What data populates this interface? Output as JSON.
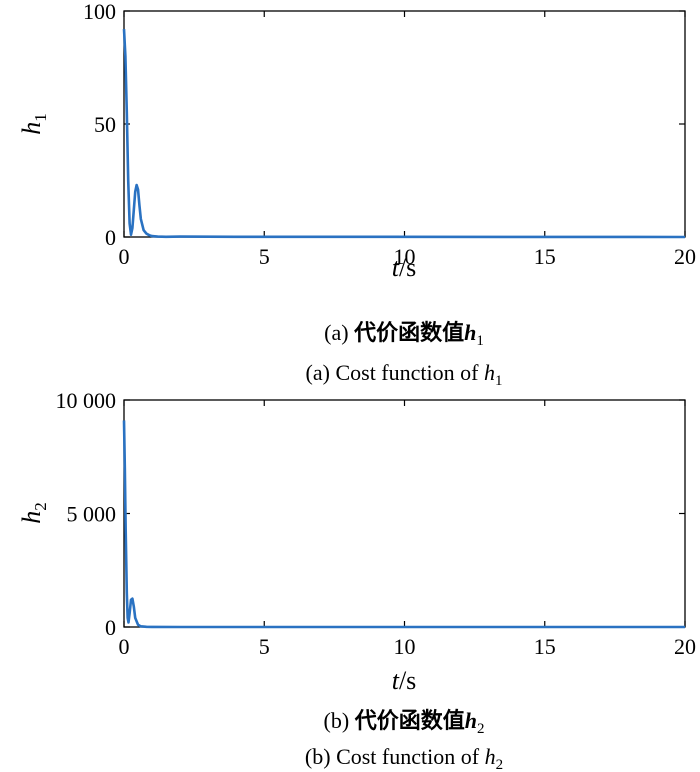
{
  "chart_data": [
    {
      "type": "line",
      "ylabel": "h",
      "ylabel_sub": "1",
      "xlabel": "t",
      "xlabel_unit": "/s",
      "xlim": [
        0,
        20
      ],
      "ylim": [
        0,
        100
      ],
      "xticks": [
        "0",
        "5",
        "10",
        "15",
        "20"
      ],
      "yticks": [
        "0",
        "50",
        "100"
      ],
      "ytick_values": [
        0,
        50,
        100
      ],
      "grid": false,
      "color": "#2a72c2",
      "series": [
        {
          "x": [
            0,
            0.05,
            0.1,
            0.15,
            0.2,
            0.25,
            0.3,
            0.35,
            0.4,
            0.45,
            0.5,
            0.55,
            0.6,
            0.7,
            0.8,
            0.9,
            1.0,
            1.2,
            1.5,
            2.0,
            4.0,
            20.0
          ],
          "values": [
            92,
            80,
            55,
            25,
            6,
            1,
            4,
            12,
            20,
            23,
            21,
            14,
            8,
            3,
            1.5,
            0.8,
            0.4,
            0.2,
            0.1,
            0.2,
            0.1,
            0
          ]
        }
      ],
      "caption_cn_prefix": "(a) ",
      "caption_cn_main": "代价函数值",
      "caption_cn_var": "h",
      "caption_cn_sub": "1",
      "caption_en_main": "(a) Cost function of ",
      "caption_en_var": "h",
      "caption_en_sub": "1"
    },
    {
      "type": "line",
      "ylabel": "h",
      "ylabel_sub": "2",
      "xlabel": "t",
      "xlabel_unit": "/s",
      "xlim": [
        0,
        20
      ],
      "ylim": [
        0,
        10000
      ],
      "xticks": [
        "0",
        "5",
        "10",
        "15",
        "20"
      ],
      "yticks": [
        "0",
        "5 000",
        "10 000"
      ],
      "ytick_values": [
        0,
        5000,
        10000
      ],
      "grid": false,
      "color": "#2a72c2",
      "series": [
        {
          "x": [
            0,
            0.03,
            0.06,
            0.1,
            0.13,
            0.16,
            0.2,
            0.25,
            0.3,
            0.35,
            0.4,
            0.5,
            0.6,
            0.8,
            1.0,
            2.0,
            20.0
          ],
          "values": [
            9100,
            7000,
            4300,
            1500,
            400,
            200,
            600,
            1200,
            1250,
            900,
            400,
            100,
            30,
            10,
            5,
            0,
            0
          ]
        }
      ],
      "caption_cn_prefix": "(b) ",
      "caption_cn_main": "代价函数值",
      "caption_cn_var": "h",
      "caption_cn_sub": "2",
      "caption_en_main": "(b) Cost function of ",
      "caption_en_var": "h",
      "caption_en_sub": "2"
    }
  ]
}
